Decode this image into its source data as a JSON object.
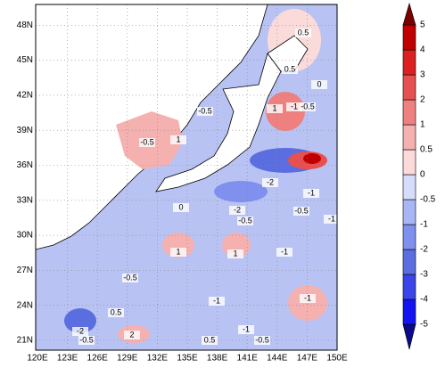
{
  "map": {
    "lon_labels": [
      "120E",
      "123E",
      "126E",
      "129E",
      "132E",
      "135E",
      "138E",
      "141E",
      "144E",
      "147E",
      "150E"
    ],
    "lat_labels": [
      "21N",
      "24N",
      "27N",
      "30N",
      "33N",
      "36N",
      "39N",
      "42N",
      "45N",
      "48N"
    ],
    "contour_labels": [
      "0.5",
      "0.5",
      "-0.5",
      "-1",
      "-0.5",
      "0",
      "1",
      "-0.5",
      "1",
      "-2",
      "-1",
      "-2",
      "-0.5",
      "-0.5",
      "-1",
      "0",
      "1",
      "1",
      "-1",
      "-0.5",
      "-1",
      "-1",
      "0.5",
      "-2",
      "2",
      "0.5",
      "-1",
      "-0.5",
      "-0.5"
    ]
  },
  "colorbar": {
    "levels": [
      -5,
      -4,
      -3,
      -2,
      -1,
      -0.5,
      0,
      0.5,
      1,
      2,
      3,
      4,
      5
    ],
    "colors": [
      "#0a0a8a",
      "#1414f0",
      "#3a46e8",
      "#5a6ee0",
      "#7f90ee",
      "#a9b6f5",
      "#d6ddfa",
      "#fbdada",
      "#f5b0b0",
      "#ee8080",
      "#e65050",
      "#dc2020",
      "#c00000",
      "#7a0000"
    ]
  }
}
